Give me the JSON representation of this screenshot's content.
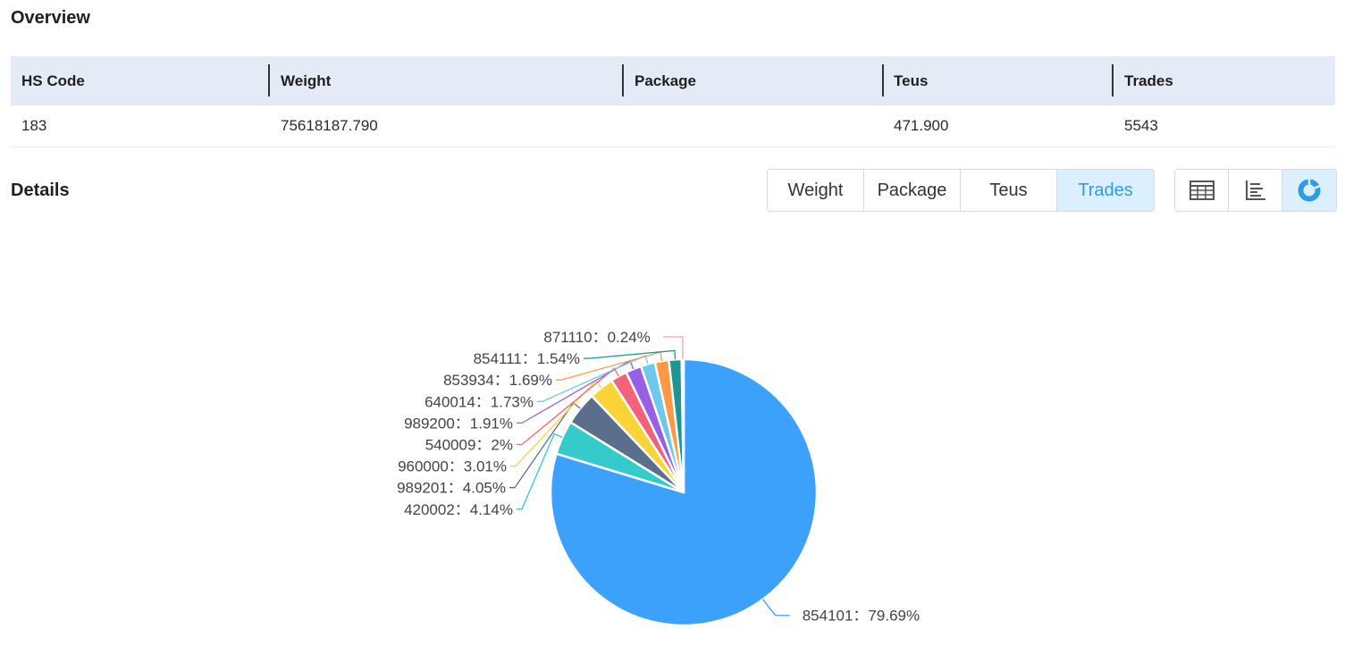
{
  "overview": {
    "title": "Overview",
    "headers": [
      "HS Code",
      "Weight",
      "Package",
      "Teus",
      "Trades"
    ],
    "row": [
      "183",
      "75618187.790",
      "",
      "471.900",
      "5543"
    ]
  },
  "details": {
    "title": "Details",
    "metric_tabs": [
      "Weight",
      "Package",
      "Teus",
      "Trades"
    ],
    "active_tab": "Trades",
    "view_buttons": [
      "table-view-icon",
      "bar-chart-icon",
      "pie-chart-icon"
    ],
    "active_view": "pie-chart-icon"
  },
  "chart_data": {
    "type": "pie",
    "labels": [
      "854101",
      "420002",
      "989201",
      "960000",
      "540009",
      "989200",
      "640014",
      "853934",
      "854111",
      "871110"
    ],
    "values": [
      79.69,
      4.14,
      4.05,
      3.01,
      2,
      1.91,
      1.73,
      1.69,
      1.54,
      0.24
    ],
    "display_labels": [
      "854101：79.69%",
      "420002：4.14%",
      "989201：4.05%",
      "960000：3.01%",
      "540009：2%",
      "989200：1.91%",
      "640014：1.73%",
      "853934：1.69%",
      "854111：1.54%",
      "871110：0.24%"
    ],
    "colors": [
      "#3ba1fb",
      "#36cbcb",
      "#5b6e8c",
      "#fad337",
      "#f2637b",
      "#975fe4",
      "#6dc8ec",
      "#ff9845",
      "#1e9493",
      "#ff99c3"
    ],
    "start_angle_deg": 90,
    "direction": "clockwise"
  }
}
